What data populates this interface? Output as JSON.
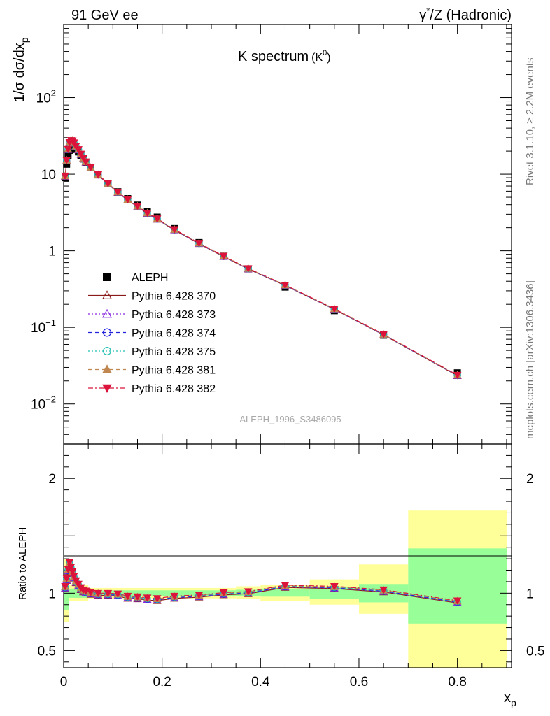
{
  "header": {
    "left": "91 GeV ee",
    "right_gamma": "γ",
    "right_rest": "/Z (Hadronic)"
  },
  "side": {
    "upper": "Rivet 3.1.10, ≥ 2.2M events",
    "lower": "mcplots.cern.ch [arXiv:1306.3436]"
  },
  "chart_data": [
    {
      "type": "scatter",
      "panel": "main",
      "title_main": "K spectrum",
      "title_sub_base": "K",
      "title_sub_sup": "0",
      "watermark": "ALEPH_1996_S3486095",
      "ylabel_main": "1/σ dσ/dx",
      "ylabel_sub": "p",
      "yscale": "log",
      "xlim": [
        0,
        0.91
      ],
      "ylim": [
        0.003,
        900
      ],
      "yticks": [
        {
          "v": 0.01,
          "base": "10",
          "exp": "−2"
        },
        {
          "v": 0.1,
          "base": "10",
          "exp": "−1"
        },
        {
          "v": 1,
          "base": "1",
          "exp": ""
        },
        {
          "v": 10,
          "base": "10",
          "exp": ""
        },
        {
          "v": 100,
          "base": "10",
          "exp": "2"
        }
      ],
      "data": {
        "name": "ALEPH",
        "color": "#000000",
        "x": [
          0.003,
          0.006,
          0.009,
          0.012,
          0.015,
          0.018,
          0.021,
          0.025,
          0.03,
          0.035,
          0.04,
          0.045,
          0.055,
          0.07,
          0.09,
          0.11,
          0.13,
          0.15,
          0.17,
          0.19,
          0.225,
          0.275,
          0.325,
          0.375,
          0.45,
          0.55,
          0.65,
          0.8
        ],
        "y": [
          9.0,
          13.5,
          17.5,
          20.5,
          22.5,
          23.0,
          22.5,
          21.0,
          19.5,
          17.5,
          15.8,
          14.3,
          12.2,
          9.9,
          7.6,
          5.9,
          4.8,
          3.95,
          3.25,
          2.75,
          1.95,
          1.28,
          0.85,
          0.58,
          0.335,
          0.165,
          0.079,
          0.0255
        ]
      },
      "mc_series": [
        {
          "name": "Pythia 6.428 370",
          "color": "#8b1a1a",
          "line": "solid",
          "marker": "triangle-open"
        },
        {
          "name": "Pythia 6.428 373",
          "color": "#8a2be2",
          "line": "dotted",
          "marker": "triangle-open"
        },
        {
          "name": "Pythia 6.428 374",
          "color": "#2222dd",
          "line": "dashed",
          "marker": "circle-open"
        },
        {
          "name": "Pythia 6.428 375",
          "color": "#20c0b0",
          "line": "dotted",
          "marker": "circle-open"
        },
        {
          "name": "Pythia 6.428 381",
          "color": "#c08850",
          "line": "dashed",
          "marker": "triangle-filled"
        },
        {
          "name": "Pythia 6.428 382",
          "color": "#dc143c",
          "line": "dashdot",
          "marker": "triangledown-filled"
        }
      ],
      "mc_ratio_to_data": [
        1.05,
        1.12,
        1.2,
        1.26,
        1.22,
        1.18,
        1.14,
        1.1,
        1.07,
        1.04,
        1.02,
        1.01,
        1.0,
        0.99,
        0.99,
        0.985,
        0.965,
        0.96,
        0.95,
        0.945,
        0.965,
        0.975,
        0.995,
        1.005,
        1.06,
        1.05,
        1.02,
        0.925
      ]
    },
    {
      "type": "scatter",
      "panel": "ratio",
      "ylabel": "Ratio to ALEPH",
      "xlabel_main": "x",
      "xlabel_sub": "p",
      "xlim": [
        0,
        0.91
      ],
      "ylim": [
        0.35,
        2.3
      ],
      "xticks": [
        0,
        0.2,
        0.4,
        0.6,
        0.8
      ],
      "xtick_labels": [
        "0",
        "0.2",
        "0.4",
        "0.6",
        "0.8"
      ],
      "yticks": [
        0.5,
        1,
        2
      ],
      "ytick_labels": [
        "0.5",
        "1",
        "2"
      ],
      "bands_inner": [
        {
          "x0": 0.0,
          "x1": 0.01,
          "lo": 0.85,
          "hi": 1.18
        },
        {
          "x0": 0.01,
          "x1": 0.05,
          "lo": 0.96,
          "hi": 1.04
        },
        {
          "x0": 0.05,
          "x1": 0.2,
          "lo": 0.975,
          "hi": 1.025
        },
        {
          "x0": 0.2,
          "x1": 0.35,
          "lo": 0.975,
          "hi": 1.025
        },
        {
          "x0": 0.35,
          "x1": 0.4,
          "lo": 0.975,
          "hi": 1.03
        },
        {
          "x0": 0.4,
          "x1": 0.5,
          "lo": 0.97,
          "hi": 1.04
        },
        {
          "x0": 0.5,
          "x1": 0.6,
          "lo": 0.95,
          "hi": 1.05
        },
        {
          "x0": 0.6,
          "x1": 0.7,
          "lo": 0.92,
          "hi": 1.08
        },
        {
          "x0": 0.7,
          "x1": 0.9,
          "lo": 0.735,
          "hi": 1.39
        }
      ],
      "bands_outer": [
        {
          "x0": 0.0,
          "x1": 0.01,
          "lo": 0.75,
          "hi": 1.3
        },
        {
          "x0": 0.01,
          "x1": 0.05,
          "lo": 0.93,
          "hi": 1.07
        },
        {
          "x0": 0.05,
          "x1": 0.2,
          "lo": 0.955,
          "hi": 1.045
        },
        {
          "x0": 0.2,
          "x1": 0.35,
          "lo": 0.955,
          "hi": 1.045
        },
        {
          "x0": 0.35,
          "x1": 0.4,
          "lo": 0.95,
          "hi": 1.06
        },
        {
          "x0": 0.4,
          "x1": 0.5,
          "lo": 0.935,
          "hi": 1.075
        },
        {
          "x0": 0.5,
          "x1": 0.6,
          "lo": 0.9,
          "hi": 1.12
        },
        {
          "x0": 0.6,
          "x1": 0.7,
          "lo": 0.82,
          "hi": 1.25
        },
        {
          "x0": 0.7,
          "x1": 0.9,
          "lo": 0.35,
          "hi": 1.72
        }
      ],
      "band_colors": {
        "inner": "#98ff98",
        "outer": "#ffff99"
      }
    }
  ]
}
